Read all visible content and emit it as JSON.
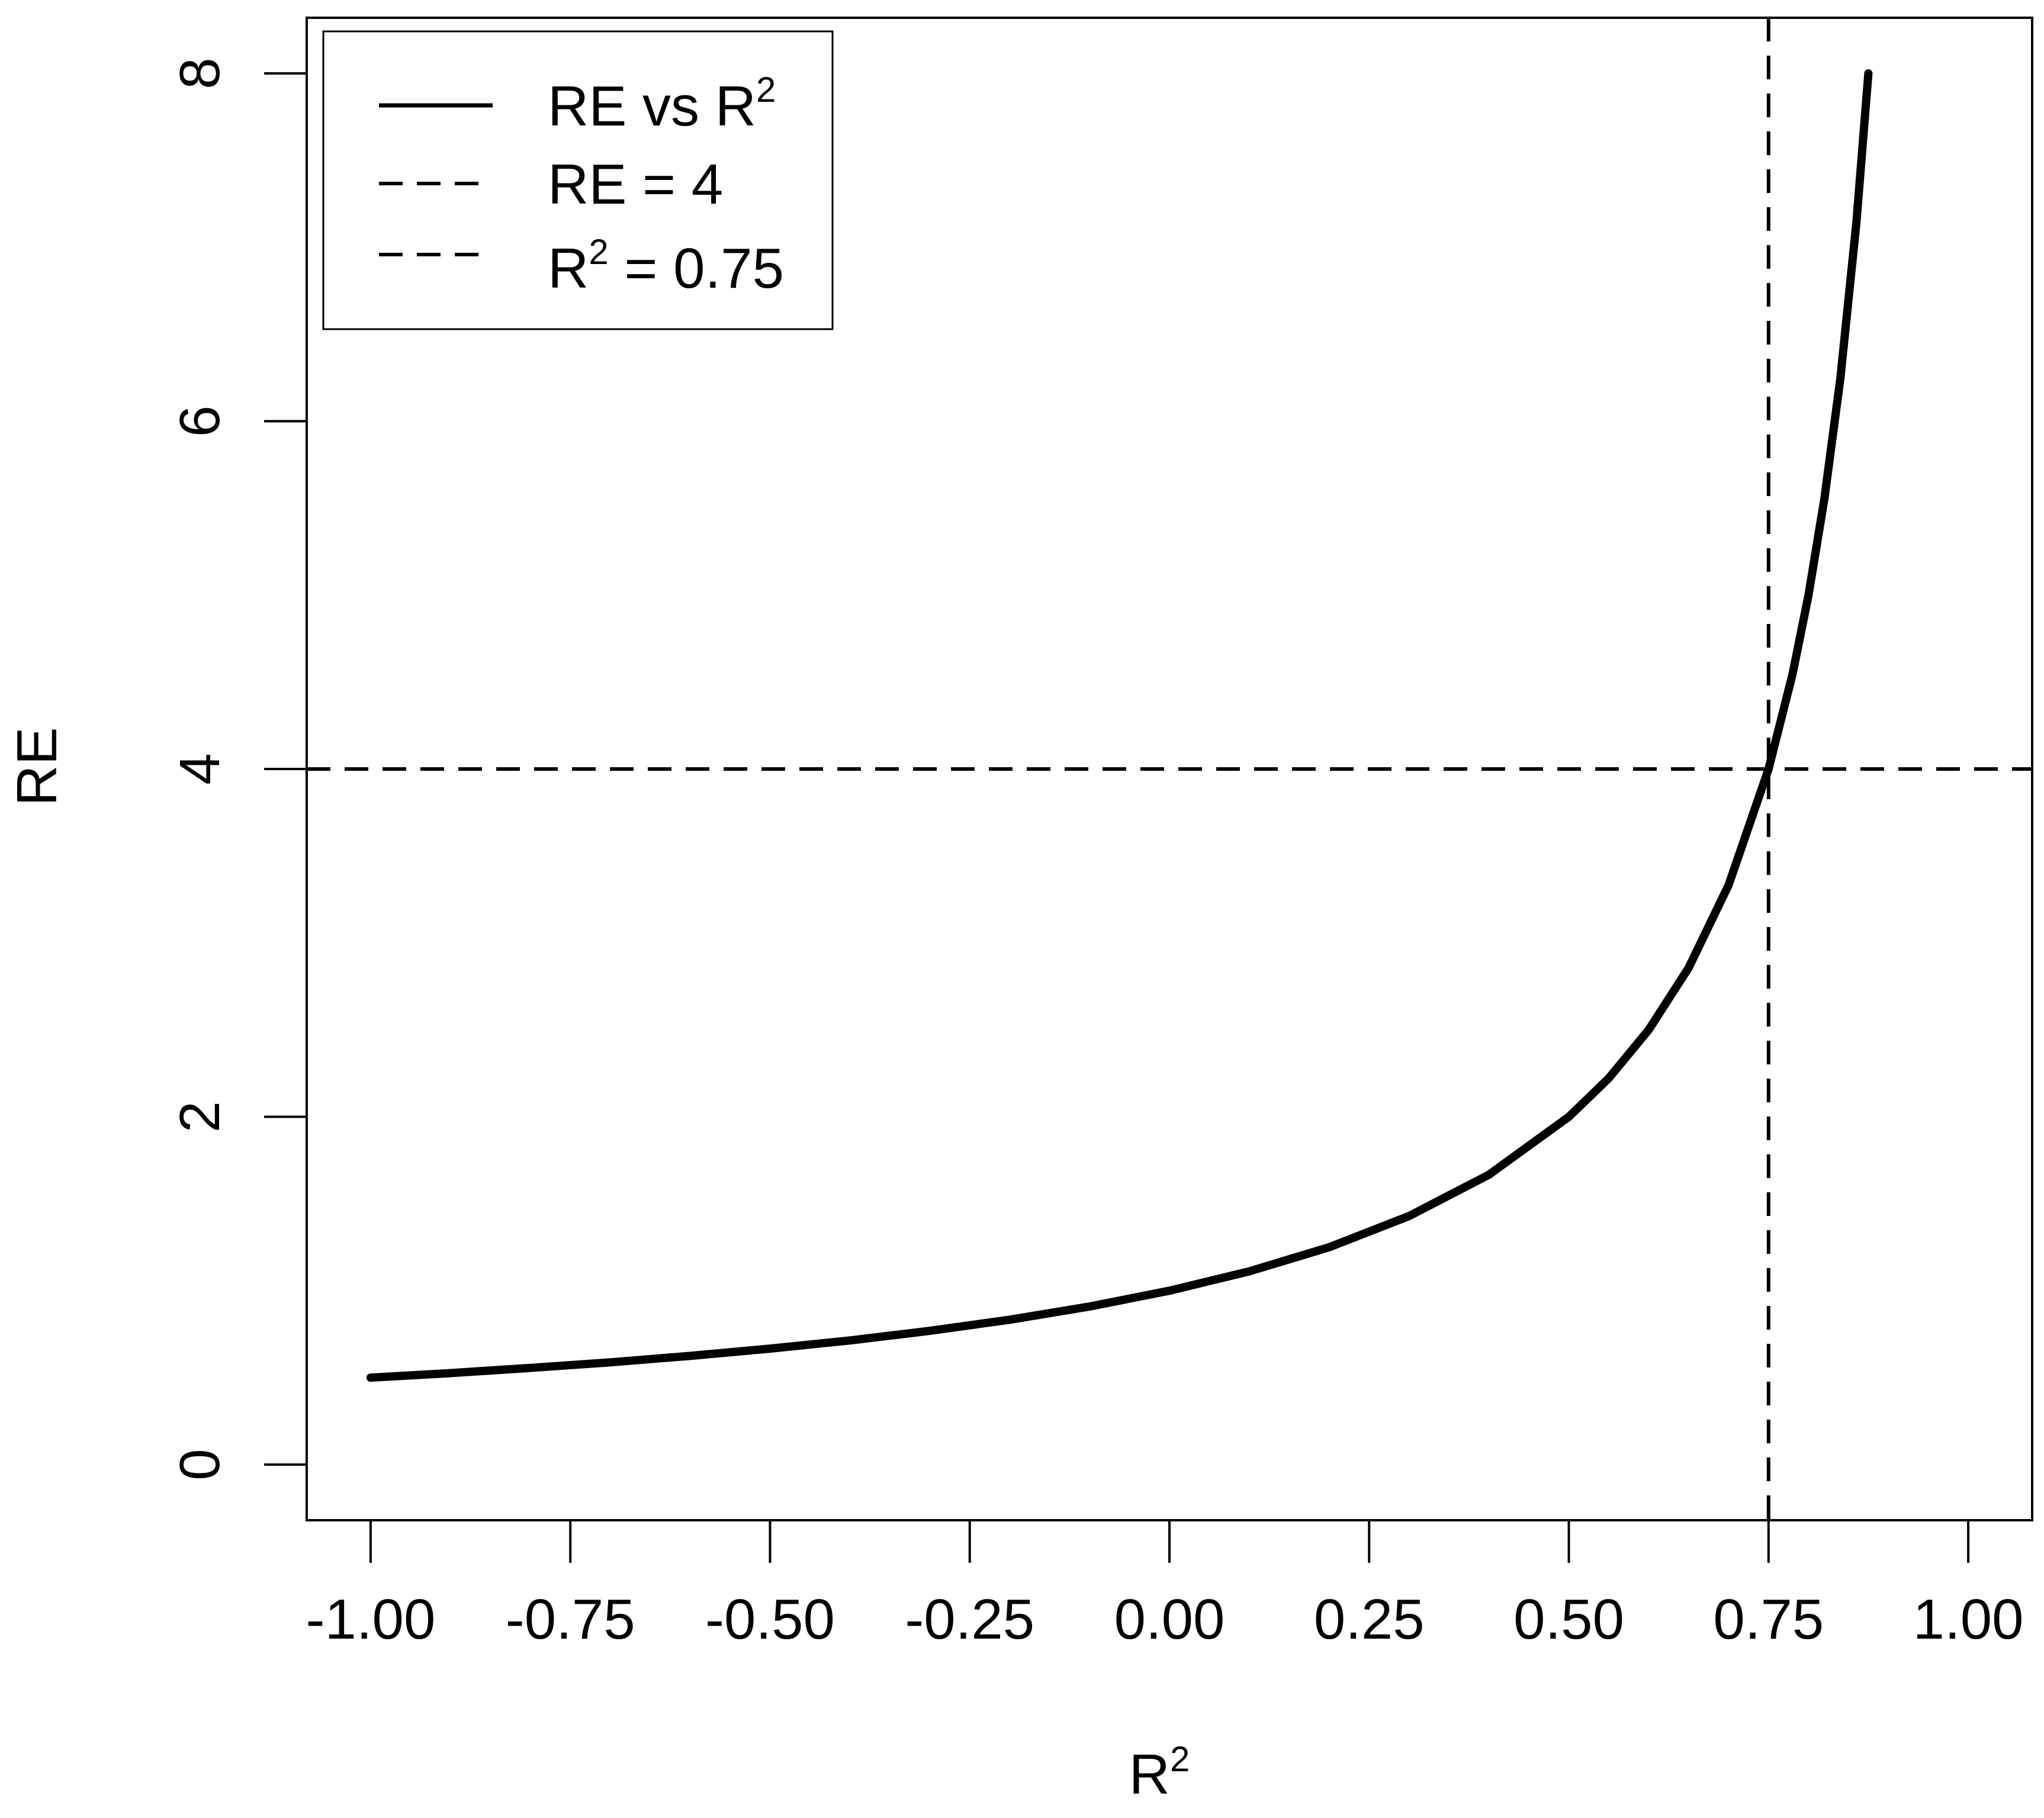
{
  "chart_data": {
    "type": "line",
    "xlabel": "R",
    "xlabel_superscript": "2",
    "ylabel": "RE",
    "xlim": [
      -1.08,
      1.08
    ],
    "ylim": [
      -0.32,
      8.32
    ],
    "x_ticks": [
      -1.0,
      -0.75,
      -0.5,
      -0.25,
      0.0,
      0.25,
      0.5,
      0.75,
      1.0
    ],
    "x_tick_labels": [
      "-1.00",
      "-0.75",
      "-0.50",
      "-0.25",
      "0.00",
      "0.25",
      "0.50",
      "0.75",
      "1.00"
    ],
    "y_ticks": [
      0,
      2,
      4,
      6,
      8
    ],
    "y_tick_labels": [
      "0",
      "2",
      "4",
      "6",
      "8"
    ],
    "grid": false,
    "legend_position": "top-left",
    "series": [
      {
        "name": "RE vs R",
        "name_superscript": "2",
        "style": "solid",
        "color": "#000000",
        "x": [
          -1.0,
          -0.9,
          -0.8,
          -0.7,
          -0.6,
          -0.5,
          -0.4,
          -0.3,
          -0.2,
          -0.1,
          0.0,
          0.1,
          0.2,
          0.3,
          0.4,
          0.5,
          0.55,
          0.6,
          0.65,
          0.7,
          0.75,
          0.78,
          0.8,
          0.82,
          0.84,
          0.86,
          0.875
        ],
        "y": [
          0.5,
          0.526,
          0.556,
          0.588,
          0.625,
          0.667,
          0.714,
          0.769,
          0.833,
          0.909,
          1.0,
          1.111,
          1.25,
          1.429,
          1.667,
          2.0,
          2.222,
          2.5,
          2.857,
          3.333,
          4.0,
          4.545,
          5.0,
          5.556,
          6.25,
          7.143,
          8.0
        ]
      }
    ],
    "reference_lines": [
      {
        "orientation": "horizontal",
        "value": 4,
        "style": "dashed",
        "label": "RE = 4",
        "label_superscript": ""
      },
      {
        "orientation": "vertical",
        "value": 0.75,
        "style": "dashed",
        "label": "R",
        "label_superscript": "2",
        "label_suffix": " = 0.75"
      }
    ]
  }
}
